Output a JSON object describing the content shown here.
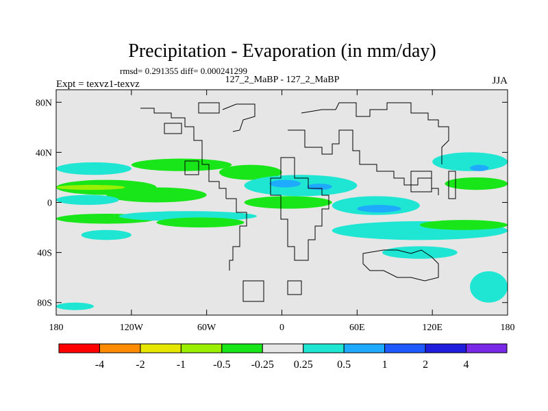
{
  "chart_data": {
    "type": "heatmap",
    "title": "Precipitation - Evaporation (in mm/day)",
    "subtitle_stats": "rmsd= 0.291355 diff= 0.000241299",
    "subtitle_case": "127_2_MaBP - 127_2_MaBP",
    "left_label": "Expt = texvz1-texvz",
    "right_label": "JJA",
    "x_axis": {
      "range": [
        -180,
        180
      ],
      "ticks": [
        -180,
        -120,
        -60,
        0,
        60,
        120,
        180
      ],
      "tick_labels": [
        "180",
        "120W",
        "60W",
        "0",
        "60E",
        "120E",
        "180"
      ]
    },
    "y_axis": {
      "range": [
        -90,
        90
      ],
      "ticks": [
        -80,
        -40,
        0,
        40,
        80
      ],
      "tick_labels": [
        "80S",
        "40S",
        "0",
        "40N",
        "80N"
      ]
    },
    "colorbar": {
      "colors": [
        "#ff0000",
        "#ff8c00",
        "#e6e600",
        "#9aee00",
        "#19e619",
        "#e6e6e6",
        "#1ee6d2",
        "#1eaaff",
        "#1e5aff",
        "#1e1edc",
        "#7828e6"
      ],
      "labels": [
        "-4",
        "-2",
        "-1",
        "-0.5",
        "-0.25",
        "0.25",
        "0.5",
        "1",
        "2",
        "4"
      ]
    },
    "field_regions": [
      {
        "band": "green",
        "lon": [
          -180,
          -100
        ],
        "lat": [
          6,
          18
        ]
      },
      {
        "band": "lime",
        "lon": [
          -180,
          -125
        ],
        "lat": [
          10,
          14
        ]
      },
      {
        "band": "green",
        "lon": [
          -140,
          -60
        ],
        "lat": [
          0,
          12
        ]
      },
      {
        "band": "cyan",
        "lon": [
          -180,
          -120
        ],
        "lat": [
          22,
          32
        ]
      },
      {
        "band": "cyan",
        "lon": [
          -180,
          -130
        ],
        "lat": [
          -2,
          6
        ]
      },
      {
        "band": "green",
        "lon": [
          -180,
          -100
        ],
        "lat": [
          -17,
          -9
        ]
      },
      {
        "band": "cyan",
        "lon": [
          -130,
          -20
        ],
        "lat": [
          -15,
          -7
        ]
      },
      {
        "band": "green",
        "lon": [
          -100,
          -30
        ],
        "lat": [
          -20,
          -12
        ]
      },
      {
        "band": "green",
        "lon": [
          -120,
          -40
        ],
        "lat": [
          25,
          35
        ]
      },
      {
        "band": "cyan",
        "lon": [
          -160,
          -120
        ],
        "lat": [
          -30,
          -22
        ]
      },
      {
        "band": "cyan",
        "lon": [
          -180,
          -150
        ],
        "lat": [
          -86,
          -80
        ]
      },
      {
        "band": "green",
        "lon": [
          -50,
          0
        ],
        "lat": [
          18,
          30
        ]
      },
      {
        "band": "cyan",
        "lon": [
          -30,
          60
        ],
        "lat": [
          5,
          22
        ]
      },
      {
        "band": "blue",
        "lon": [
          -10,
          15
        ],
        "lat": [
          12,
          18
        ]
      },
      {
        "band": "blue",
        "lon": [
          20,
          40
        ],
        "lat": [
          10,
          15
        ]
      },
      {
        "band": "cyan",
        "lon": [
          40,
          110
        ],
        "lat": [
          -10,
          5
        ]
      },
      {
        "band": "blue",
        "lon": [
          60,
          95
        ],
        "lat": [
          -8,
          -2
        ]
      },
      {
        "band": "cyan",
        "lon": [
          40,
          180
        ],
        "lat": [
          -30,
          -15
        ]
      },
      {
        "band": "green",
        "lon": [
          110,
          180
        ],
        "lat": [
          -22,
          -14
        ]
      },
      {
        "band": "cyan",
        "lon": [
          120,
          180
        ],
        "lat": [
          25,
          40
        ]
      },
      {
        "band": "blue",
        "lon": [
          150,
          165
        ],
        "lat": [
          25,
          30
        ]
      },
      {
        "band": "green",
        "lon": [
          130,
          180
        ],
        "lat": [
          10,
          20
        ]
      },
      {
        "band": "green",
        "lon": [
          -30,
          40
        ],
        "lat": [
          -5,
          5
        ]
      },
      {
        "band": "cyan",
        "lon": [
          80,
          140
        ],
        "lat": [
          -45,
          -35
        ]
      },
      {
        "band": "cyan",
        "lon": [
          150,
          180
        ],
        "lat": [
          -80,
          -55
        ]
      }
    ]
  }
}
